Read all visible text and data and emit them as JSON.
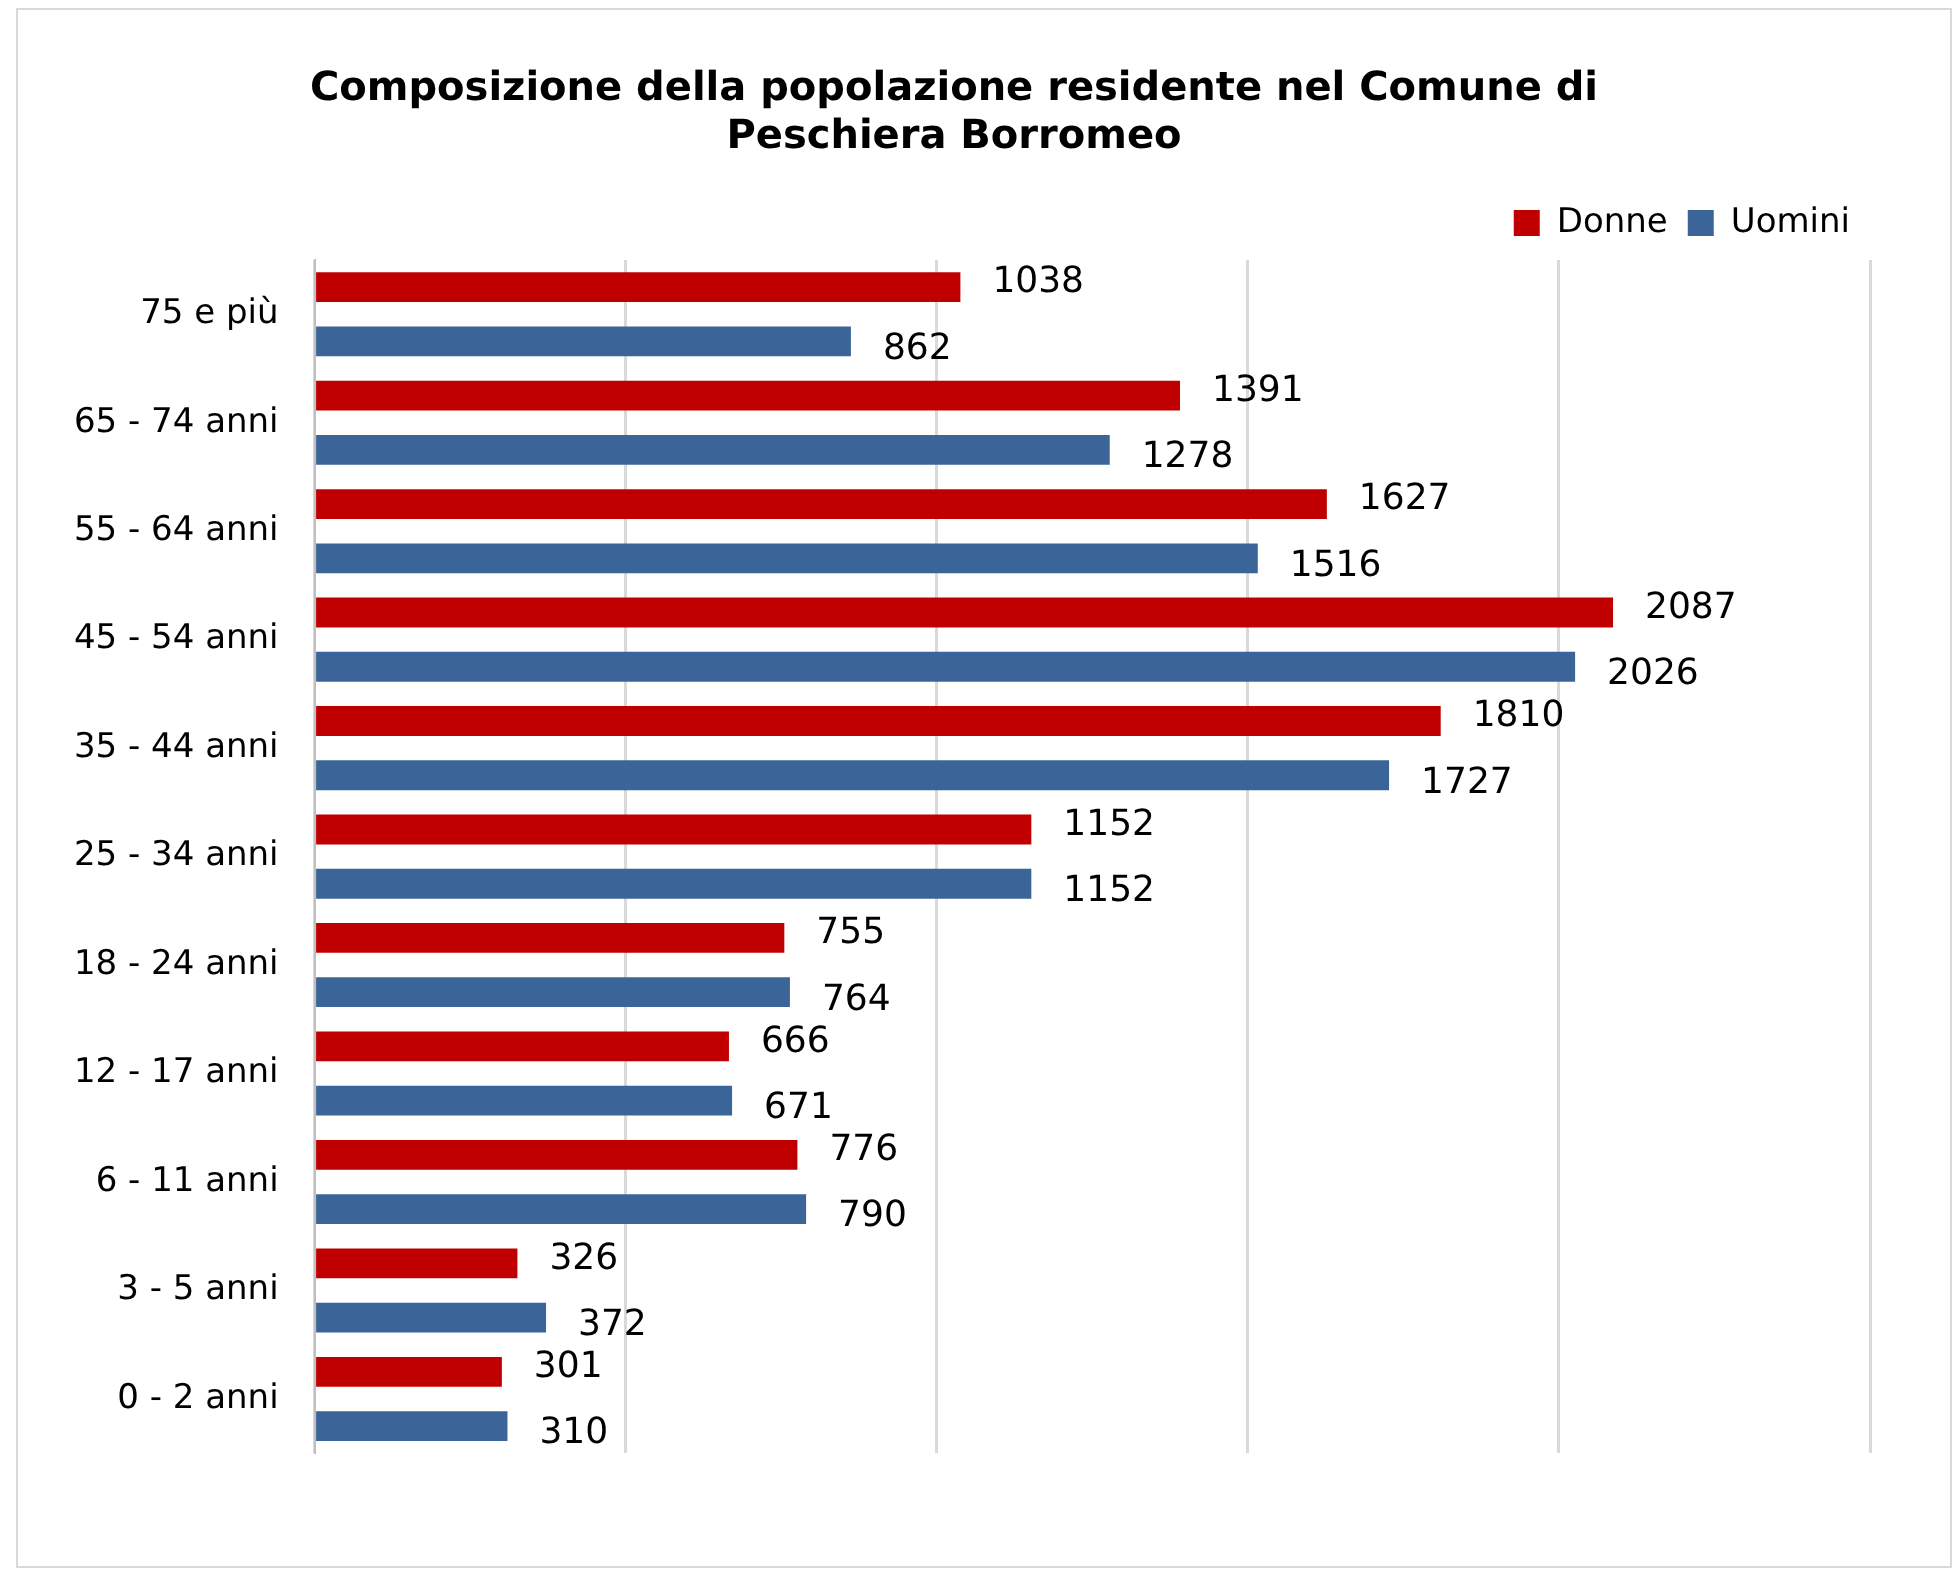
{
  "chart_data": {
    "type": "bar",
    "orientation": "horizontal",
    "title": "Composizione della popolazione residente nel Comune di\nPeschiera Borromeo",
    "categories": [
      "75 e più",
      "65 - 74 anni",
      "55 - 64 anni",
      "45 - 54 anni",
      "35 - 44 anni",
      "25 - 34 anni",
      "18 - 24 anni",
      "12 - 17 anni",
      "6 - 11 anni",
      "3 - 5 anni",
      "0 - 2 anni"
    ],
    "series": [
      {
        "name": "Donne",
        "color": "#c00000",
        "values": [
          1038,
          1391,
          1627,
          2087,
          1810,
          1152,
          755,
          666,
          776,
          326,
          301
        ]
      },
      {
        "name": "Uomini",
        "color": "#3b6499",
        "values": [
          862,
          1278,
          1516,
          2026,
          1727,
          1152,
          764,
          671,
          790,
          372,
          310
        ]
      }
    ],
    "xlim": [
      0,
      2500
    ],
    "xticks": [
      {
        "value": 0,
        "label": null
      },
      {
        "value": 500,
        "label": null
      },
      {
        "value": 1000,
        "label": null
      },
      {
        "value": 1500,
        "label": null
      },
      {
        "value": 2000,
        "label": null
      },
      {
        "value": 2500,
        "label": null
      }
    ],
    "grid": "x",
    "legend": "top right",
    "data_labels": true
  }
}
